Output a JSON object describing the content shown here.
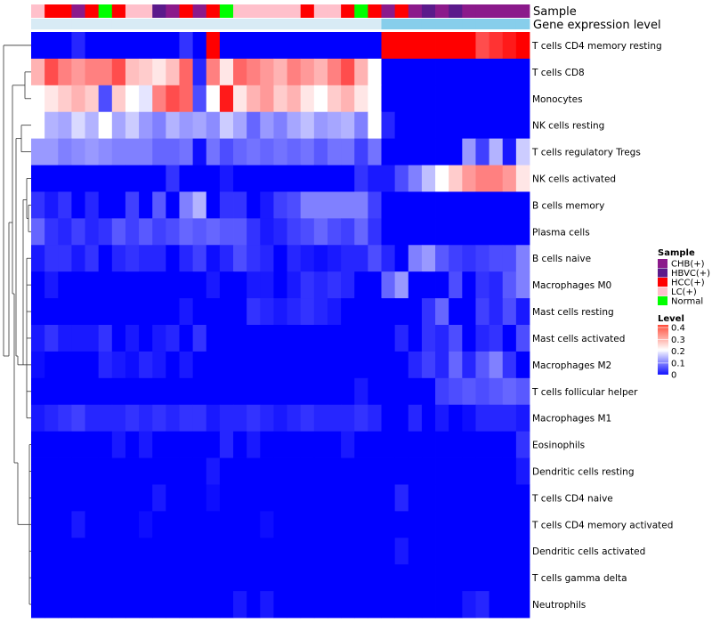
{
  "chart_data": {
    "type": "heatmap",
    "annotation_labels": [
      "Sample",
      "Gene expression level"
    ],
    "legend": {
      "sample_title": "Sample",
      "sample_items": [
        {
          "label": "CHB(+)",
          "color": "#8b1a8b"
        },
        {
          "label": "HBVC(+)",
          "color": "#5b1a8b"
        },
        {
          "label": "HCC(+)",
          "color": "#ff0000"
        },
        {
          "label": "LC(+)",
          "color": "#ffc0cb"
        },
        {
          "label": "Normal",
          "color": "#00ff00"
        }
      ],
      "level_title": "Level",
      "level_ticks": [
        "0.4",
        "0.3",
        "0.2",
        "0.1",
        "0"
      ],
      "level_range": [
        0,
        0.4
      ]
    },
    "sample_groups": [
      "LC(+)",
      "HCC(+)",
      "HCC(+)",
      "CHB(+)",
      "HCC(+)",
      "Normal",
      "HCC(+)",
      "LC(+)",
      "LC(+)",
      "HBVC(+)",
      "CHB(+)",
      "HCC(+)",
      "CHB(+)",
      "HCC(+)",
      "Normal",
      "LC(+)",
      "LC(+)",
      "LC(+)",
      "LC(+)",
      "LC(+)",
      "HCC(+)",
      "LC(+)",
      "LC(+)",
      "HCC(+)",
      "Normal",
      "HCC(+)",
      "CHB(+)",
      "HCC(+)",
      "CHB(+)",
      "HBVC(+)",
      "CHB(+)",
      "HBVC(+)",
      "CHB(+)",
      "CHB(+)",
      "CHB(+)",
      "CHB(+)",
      "CHB(+)"
    ],
    "gene_expression_bar_colors": [
      "#d8ebf5",
      "#d8ebf5",
      "#d8ebf5",
      "#d8ebf5",
      "#d8ebf5",
      "#d8ebf5",
      "#d8ebf5",
      "#d8ebf5",
      "#d8ebf5",
      "#d8ebf5",
      "#d8ebf5",
      "#d8ebf5",
      "#d8ebf5",
      "#d8ebf5",
      "#d8ebf5",
      "#d8ebf5",
      "#d8ebf5",
      "#d8ebf5",
      "#d8ebf5",
      "#d8ebf5",
      "#d8ebf5",
      "#d8ebf5",
      "#d8ebf5",
      "#d8ebf5",
      "#d8ebf5",
      "#d8ebf5",
      "#87ceeb",
      "#87ceeb",
      "#87ceeb",
      "#87ceeb",
      "#87ceeb",
      "#87ceeb",
      "#87ceeb",
      "#87ceeb",
      "#87ceeb",
      "#87ceeb",
      "#87ceeb"
    ],
    "rows": [
      "T cells CD4 memory resting",
      "T cells CD8",
      "Monocytes",
      "NK cells resting",
      "T cells regulatory  Tregs",
      "NK cells activated",
      "B cells memory",
      "Plasma cells",
      "B cells naive",
      "Macrophages M0",
      "Mast cells resting",
      "Mast cells activated",
      "Macrophages M2",
      "T cells follicular helper",
      "Macrophages M1",
      "Eosinophils",
      "Dendritic cells resting",
      "T cells CD4 naive",
      "T cells CD4 memory activated",
      "Dendritic cells activated",
      "T cells gamma delta",
      "Neutrophils"
    ],
    "values": [
      [
        0,
        0,
        0,
        0.03,
        0,
        0,
        0,
        0,
        0,
        0,
        0,
        0.04,
        0,
        0.4,
        0,
        0,
        0,
        0,
        0,
        0,
        0,
        0,
        0,
        0,
        0,
        0,
        0.4,
        0.4,
        0.4,
        0.4,
        0.4,
        0.4,
        0.4,
        0.34,
        0.36,
        0.38,
        0.4
      ],
      [
        0.26,
        0.34,
        0.3,
        0.28,
        0.3,
        0.3,
        0.34,
        0.25,
        0.24,
        0.22,
        0.25,
        0.32,
        0.03,
        0.3,
        0.22,
        0.32,
        0.3,
        0.28,
        0.26,
        0.3,
        0.28,
        0.26,
        0.3,
        0.34,
        0.26,
        0.2,
        0,
        0,
        0,
        0,
        0,
        0,
        0,
        0,
        0,
        0,
        0
      ],
      [
        0.2,
        0.22,
        0.24,
        0.26,
        0.24,
        0.06,
        0.24,
        0.2,
        0.18,
        0.3,
        0.34,
        0.32,
        0.06,
        0.2,
        0.38,
        0.22,
        0.26,
        0.28,
        0.24,
        0.26,
        0.22,
        0.2,
        0.24,
        0.26,
        0.22,
        0.2,
        0,
        0,
        0,
        0,
        0,
        0,
        0,
        0,
        0,
        0,
        0
      ],
      [
        0.2,
        0.14,
        0.13,
        0.17,
        0.14,
        0.2,
        0.13,
        0.16,
        0.12,
        0.1,
        0.14,
        0.12,
        0.13,
        0.11,
        0.16,
        0.13,
        0.08,
        0.12,
        0.1,
        0.13,
        0.15,
        0.12,
        0.13,
        0.14,
        0.1,
        0.2,
        0.03,
        0,
        0,
        0,
        0,
        0,
        0,
        0,
        0,
        0,
        0
      ],
      [
        0.12,
        0.12,
        0.1,
        0.11,
        0.12,
        0.11,
        0.1,
        0.1,
        0.1,
        0.08,
        0.08,
        0.09,
        0.01,
        0.09,
        0.06,
        0.08,
        0.09,
        0.08,
        0.09,
        0.08,
        0.09,
        0.07,
        0.09,
        0.09,
        0.05,
        0.09,
        0,
        0,
        0,
        0,
        0,
        0,
        0.12,
        0.05,
        0.14,
        0.02,
        0.16
      ],
      [
        0,
        0,
        0,
        0,
        0,
        0,
        0,
        0,
        0,
        0,
        0.04,
        0,
        0,
        0,
        0.02,
        0,
        0,
        0,
        0,
        0,
        0,
        0,
        0,
        0,
        0.04,
        0.02,
        0.02,
        0.06,
        0.1,
        0.15,
        0.2,
        0.24,
        0.28,
        0.3,
        0.3,
        0.28,
        0.22
      ],
      [
        0.04,
        0.02,
        0.04,
        0,
        0.03,
        0,
        0,
        0.05,
        0,
        0.07,
        0,
        0.1,
        0.14,
        0,
        0.04,
        0.04,
        0,
        0.02,
        0.05,
        0.06,
        0.1,
        0.1,
        0.1,
        0.1,
        0.1,
        0.05,
        0,
        0,
        0,
        0,
        0,
        0,
        0,
        0,
        0,
        0,
        0
      ],
      [
        0.08,
        0.04,
        0.03,
        0.05,
        0.03,
        0.04,
        0.07,
        0.05,
        0.07,
        0.05,
        0.06,
        0.08,
        0.07,
        0.08,
        0.07,
        0.07,
        0.04,
        0.02,
        0.03,
        0.05,
        0.06,
        0.08,
        0.06,
        0.05,
        0.08,
        0.04,
        0,
        0,
        0,
        0,
        0,
        0,
        0,
        0,
        0,
        0,
        0
      ],
      [
        0.02,
        0.04,
        0.04,
        0.02,
        0.04,
        0,
        0.03,
        0.04,
        0.03,
        0.03,
        0,
        0.03,
        0.05,
        0.01,
        0.03,
        0.06,
        0.04,
        0.03,
        0,
        0.03,
        0.02,
        0.01,
        0.02,
        0.03,
        0.03,
        0.06,
        0.03,
        0,
        0.1,
        0.12,
        0.07,
        0.05,
        0.04,
        0.05,
        0.06,
        0.06,
        0.1
      ],
      [
        0,
        0.02,
        0,
        0,
        0,
        0,
        0,
        0,
        0,
        0,
        0,
        0,
        0,
        0.02,
        0,
        0,
        0.02,
        0.02,
        0,
        0.02,
        0.04,
        0.03,
        0.04,
        0.03,
        0,
        0,
        0.08,
        0.12,
        0,
        0,
        0,
        0.06,
        0,
        0.04,
        0.03,
        0.07,
        0.1
      ],
      [
        0,
        0,
        0,
        0,
        0,
        0,
        0,
        0,
        0,
        0,
        0,
        0.02,
        0,
        0,
        0,
        0,
        0.04,
        0.03,
        0.02,
        0.03,
        0.04,
        0.03,
        0.02,
        0,
        0,
        0,
        0,
        0,
        0,
        0.04,
        0.08,
        0,
        0,
        0.05,
        0.03,
        0.06,
        0.02
      ],
      [
        0.02,
        0.04,
        0.02,
        0.02,
        0.02,
        0.04,
        0,
        0.02,
        0,
        0.02,
        0.03,
        0,
        0.04,
        0,
        0,
        0,
        0,
        0,
        0,
        0,
        0,
        0,
        0,
        0,
        0,
        0,
        0,
        0.03,
        0,
        0.04,
        0.03,
        0.06,
        0,
        0.03,
        0.04,
        0,
        0.06
      ],
      [
        0.01,
        0,
        0,
        0,
        0,
        0.03,
        0.02,
        0.01,
        0.03,
        0.02,
        0,
        0.02,
        0,
        0,
        0,
        0,
        0,
        0,
        0,
        0,
        0,
        0,
        0,
        0,
        0,
        0,
        0,
        0,
        0.03,
        0.05,
        0.03,
        0.08,
        0.03,
        0.07,
        0.1,
        0.04,
        0
      ],
      [
        0,
        0,
        0,
        0,
        0,
        0,
        0,
        0,
        0,
        0,
        0,
        0,
        0,
        0,
        0,
        0,
        0,
        0,
        0,
        0,
        0,
        0,
        0,
        0,
        0.02,
        0,
        0,
        0,
        0,
        0,
        0.05,
        0.06,
        0.07,
        0.06,
        0.07,
        0.08,
        0.07
      ],
      [
        0.02,
        0.03,
        0.04,
        0.05,
        0.03,
        0.03,
        0.03,
        0.04,
        0.03,
        0.04,
        0.03,
        0.04,
        0.04,
        0.02,
        0.03,
        0.03,
        0.04,
        0.03,
        0.02,
        0.03,
        0.04,
        0.03,
        0.03,
        0.03,
        0.04,
        0.03,
        0,
        0,
        0.03,
        0,
        0.02,
        0,
        0.01,
        0.03,
        0.03,
        0.03,
        0.02
      ],
      [
        0,
        0,
        0,
        0,
        0,
        0,
        0.02,
        0,
        0.02,
        0,
        0,
        0,
        0,
        0,
        0.03,
        0,
        0.02,
        0,
        0,
        0,
        0,
        0,
        0,
        0.02,
        0,
        0,
        0,
        0,
        0,
        0,
        0,
        0,
        0,
        0,
        0,
        0,
        0.04
      ],
      [
        0,
        0,
        0,
        0,
        0,
        0,
        0,
        0,
        0,
        0,
        0,
        0,
        0,
        0.02,
        0,
        0,
        0,
        0,
        0,
        0,
        0,
        0,
        0,
        0,
        0,
        0,
        0,
        0,
        0,
        0,
        0,
        0,
        0,
        0,
        0,
        0,
        0.02
      ],
      [
        0,
        0,
        0,
        0,
        0,
        0,
        0,
        0,
        0,
        0.02,
        0,
        0,
        0,
        0.01,
        0,
        0,
        0,
        0,
        0,
        0,
        0,
        0,
        0,
        0,
        0,
        0,
        0,
        0.03,
        0,
        0,
        0,
        0,
        0,
        0,
        0,
        0,
        0
      ],
      [
        0,
        0,
        0,
        0.02,
        0,
        0,
        0,
        0,
        0.01,
        0,
        0,
        0,
        0,
        0,
        0,
        0,
        0,
        0.01,
        0,
        0,
        0,
        0,
        0,
        0,
        0,
        0,
        0,
        0,
        0,
        0,
        0,
        0,
        0,
        0,
        0,
        0,
        0
      ],
      [
        0,
        0,
        0,
        0,
        0,
        0,
        0,
        0,
        0,
        0,
        0,
        0,
        0,
        0,
        0,
        0,
        0,
        0,
        0,
        0,
        0,
        0,
        0,
        0,
        0,
        0,
        0,
        0.02,
        0,
        0,
        0,
        0,
        0,
        0,
        0,
        0,
        0
      ],
      [
        0,
        0,
        0,
        0,
        0,
        0,
        0,
        0,
        0,
        0,
        0,
        0,
        0,
        0,
        0,
        0,
        0,
        0,
        0,
        0,
        0,
        0,
        0,
        0,
        0,
        0,
        0,
        0,
        0,
        0,
        0,
        0,
        0,
        0,
        0,
        0,
        0
      ],
      [
        0,
        0,
        0,
        0,
        0,
        0,
        0,
        0,
        0,
        0,
        0,
        0,
        0,
        0,
        0,
        0.02,
        0,
        0.02,
        0,
        0,
        0,
        0,
        0,
        0,
        0,
        0,
        0,
        0,
        0,
        0,
        0,
        0,
        0.02,
        0.03,
        0,
        0,
        0
      ]
    ]
  }
}
